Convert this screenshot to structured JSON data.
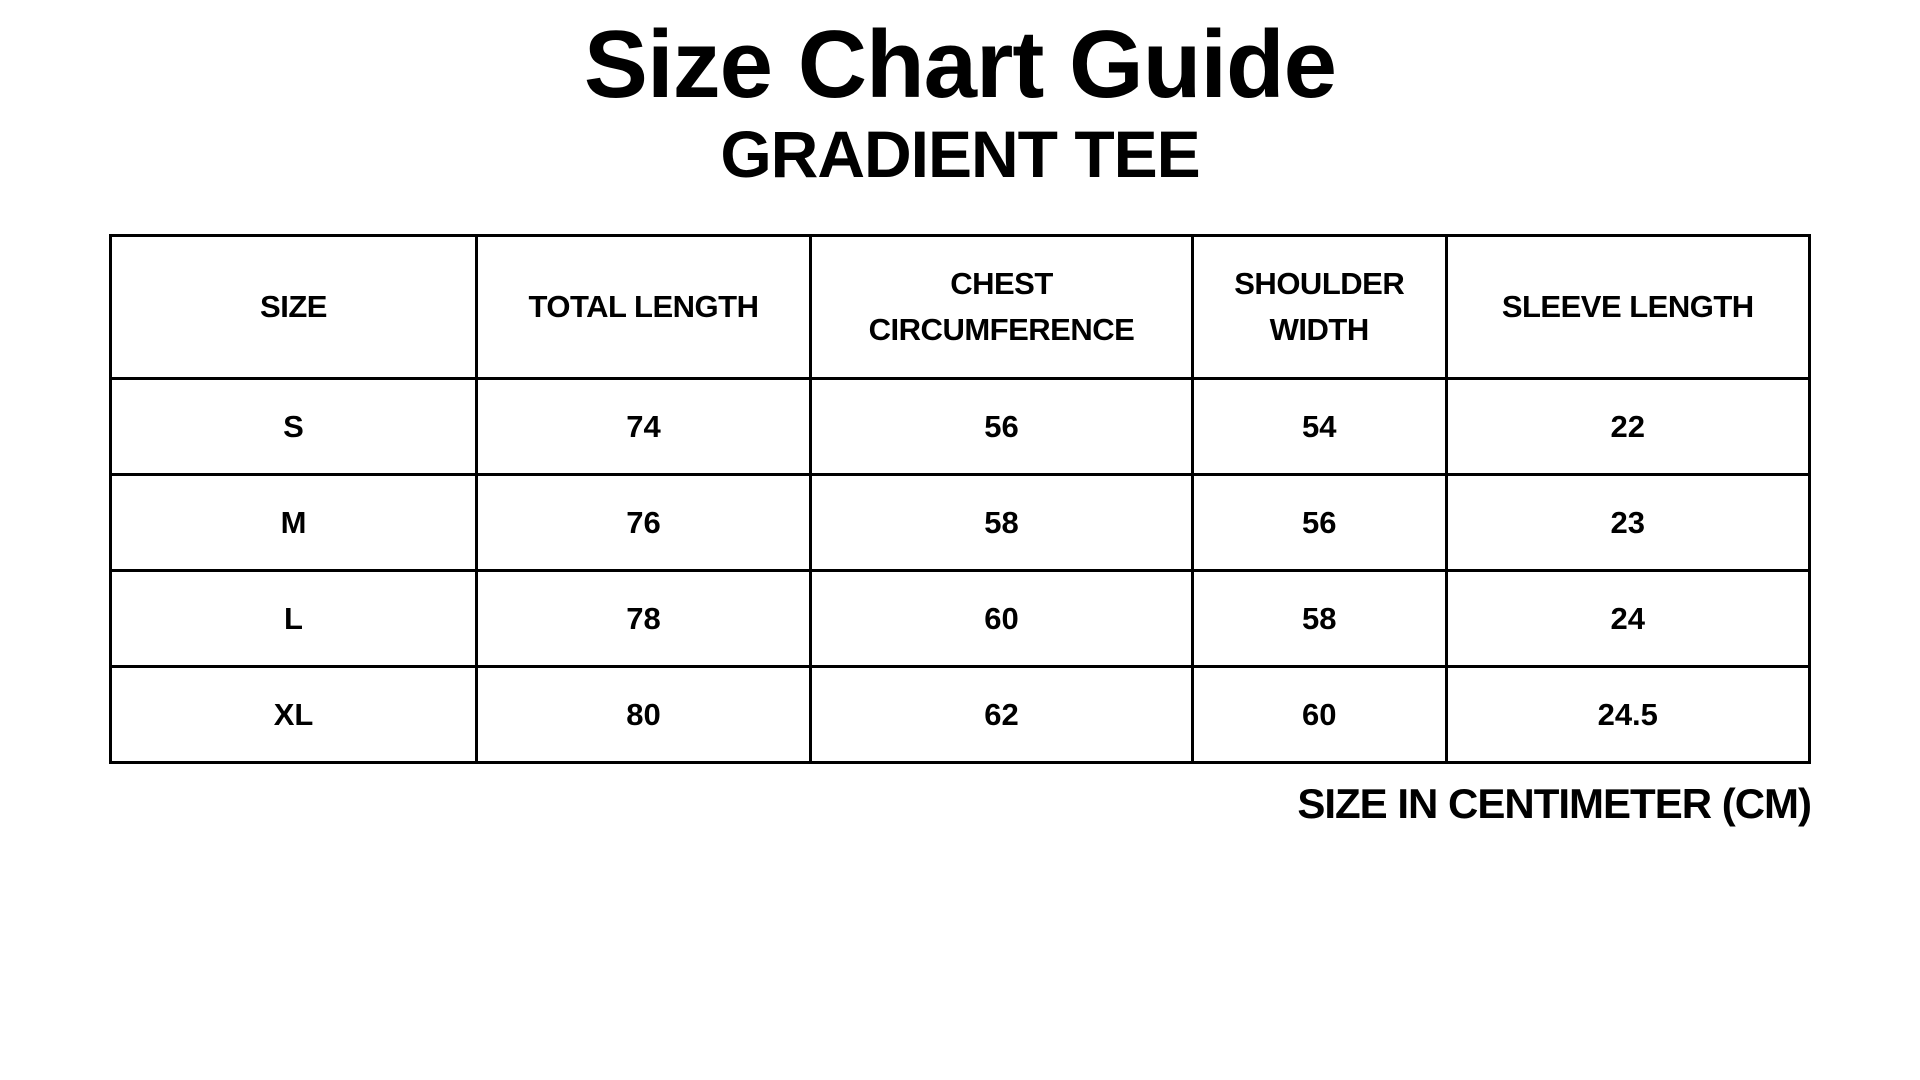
{
  "title": "Size Chart Guide",
  "subtitle": "GRADIENT TEE",
  "table": {
    "headers": [
      "SIZE",
      "TOTAL LENGTH",
      "CHEST\nCIRCUMFERENCE",
      "SHOULDER\nWIDTH",
      "SLEEVE LENGTH"
    ],
    "rows": [
      [
        "S",
        "74",
        "56",
        "54",
        "22"
      ],
      [
        "M",
        "76",
        "58",
        "56",
        "23"
      ],
      [
        "L",
        "78",
        "60",
        "58",
        "24"
      ],
      [
        "XL",
        "80",
        "62",
        "60",
        "24.5"
      ]
    ]
  },
  "note": "SIZE IN CENTIMETER (CM)"
}
